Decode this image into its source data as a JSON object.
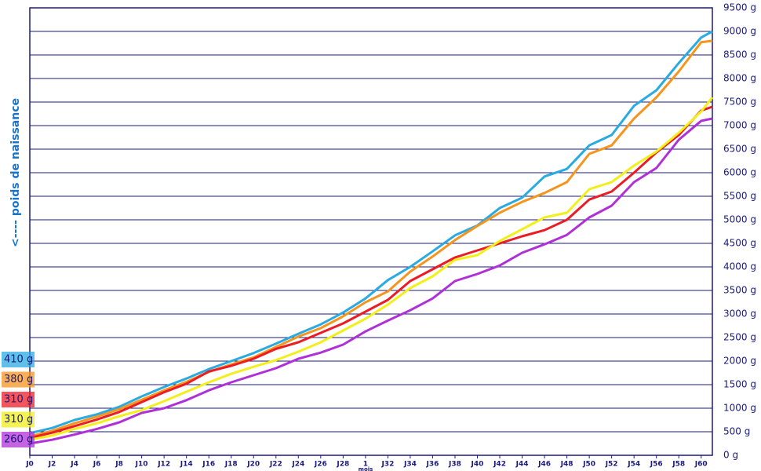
{
  "chart_data": {
    "type": "line",
    "ylabel": "<----  poids de naissance",
    "xlabel": "mois",
    "x": [
      0,
      2,
      4,
      6,
      8,
      10,
      12,
      14,
      16,
      18,
      20,
      22,
      24,
      26,
      28,
      30,
      32,
      34,
      36,
      38,
      40,
      42,
      44,
      46,
      48,
      50,
      52,
      54,
      56,
      58,
      60,
      61
    ],
    "xlim": [
      0,
      61
    ],
    "ylim": [
      0,
      9500
    ],
    "grid": true,
    "xticks": [
      {
        "value": 0,
        "label": "J0"
      },
      {
        "value": 2,
        "label": "J2"
      },
      {
        "value": 4,
        "label": "J4"
      },
      {
        "value": 6,
        "label": "J6"
      },
      {
        "value": 8,
        "label": "J8"
      },
      {
        "value": 10,
        "label": "J10"
      },
      {
        "value": 12,
        "label": "J12"
      },
      {
        "value": 14,
        "label": "J14"
      },
      {
        "value": 16,
        "label": "J16"
      },
      {
        "value": 18,
        "label": "J18"
      },
      {
        "value": 20,
        "label": "J20"
      },
      {
        "value": 22,
        "label": "J22"
      },
      {
        "value": 24,
        "label": "J24"
      },
      {
        "value": 26,
        "label": "J26"
      },
      {
        "value": 28,
        "label": "J28"
      },
      {
        "value": 30,
        "label": "1"
      },
      {
        "value": 32,
        "label": "J32"
      },
      {
        "value": 34,
        "label": "J34"
      },
      {
        "value": 36,
        "label": "J36"
      },
      {
        "value": 38,
        "label": "J38"
      },
      {
        "value": 40,
        "label": "J40"
      },
      {
        "value": 42,
        "label": "J42"
      },
      {
        "value": 44,
        "label": "J44"
      },
      {
        "value": 46,
        "label": "J46"
      },
      {
        "value": 48,
        "label": "J48"
      },
      {
        "value": 50,
        "label": "J50"
      },
      {
        "value": 52,
        "label": "J52"
      },
      {
        "value": 54,
        "label": "J54"
      },
      {
        "value": 56,
        "label": "J56"
      },
      {
        "value": 58,
        "label": "J58"
      },
      {
        "value": 60,
        "label": "J60"
      }
    ],
    "yticks": [
      {
        "value": 0,
        "label": "0 g"
      },
      {
        "value": 500,
        "label": "500 g"
      },
      {
        "value": 1000,
        "label": "1000 g"
      },
      {
        "value": 1500,
        "label": "1500 g"
      },
      {
        "value": 2000,
        "label": "2000 g"
      },
      {
        "value": 2500,
        "label": "2500 g"
      },
      {
        "value": 3000,
        "label": "3000 g"
      },
      {
        "value": 3500,
        "label": "3500 g"
      },
      {
        "value": 4000,
        "label": "4000 g"
      },
      {
        "value": 4500,
        "label": "4500 g"
      },
      {
        "value": 5000,
        "label": "5000 g"
      },
      {
        "value": 5500,
        "label": "5500 g"
      },
      {
        "value": 6000,
        "label": "6000 g"
      },
      {
        "value": 6500,
        "label": "6500 g"
      },
      {
        "value": 7000,
        "label": "7000 g"
      },
      {
        "value": 7500,
        "label": "7500 g"
      },
      {
        "value": 8000,
        "label": "8000 g"
      },
      {
        "value": 8500,
        "label": "8500 g"
      },
      {
        "value": 9000,
        "label": "9000 g"
      },
      {
        "value": 9500,
        "label": "9500 g"
      }
    ],
    "series": [
      {
        "name": "410 g",
        "color": "#29abe2",
        "values": [
          470,
          580,
          750,
          870,
          1030,
          1250,
          1450,
          1630,
          1830,
          2000,
          2170,
          2370,
          2580,
          2780,
          3030,
          3330,
          3720,
          4000,
          4330,
          4670,
          4880,
          5250,
          5470,
          5920,
          6080,
          6580,
          6800,
          7420,
          7750,
          8330,
          8870,
          9000
        ]
      },
      {
        "name": "380 g",
        "color": "#f7941d",
        "values": [
          400,
          520,
          680,
          820,
          980,
          1180,
          1380,
          1560,
          1770,
          1930,
          2080,
          2300,
          2520,
          2700,
          2950,
          3250,
          3480,
          3900,
          4220,
          4570,
          4870,
          5150,
          5380,
          5570,
          5800,
          6400,
          6580,
          7150,
          7600,
          8150,
          8770,
          8800
        ]
      },
      {
        "name": "310 g",
        "color": "#ed1c24",
        "values": [
          370,
          480,
          620,
          760,
          920,
          1130,
          1340,
          1520,
          1780,
          1900,
          2050,
          2260,
          2400,
          2600,
          2800,
          3050,
          3300,
          3700,
          3950,
          4200,
          4350,
          4500,
          4650,
          4780,
          5000,
          5430,
          5600,
          6000,
          6430,
          6800,
          7320,
          7400
        ]
      },
      {
        "name": "310 g",
        "color": "#f2ef1a",
        "values": [
          330,
          420,
          560,
          680,
          830,
          960,
          1150,
          1350,
          1550,
          1730,
          1880,
          2020,
          2200,
          2400,
          2650,
          2900,
          3200,
          3550,
          3800,
          4150,
          4250,
          4550,
          4800,
          5050,
          5150,
          5650,
          5800,
          6150,
          6450,
          6850,
          7300,
          7600
        ]
      },
      {
        "name": "260 g",
        "color": "#b030d8",
        "values": [
          250,
          330,
          440,
          560,
          700,
          900,
          1000,
          1170,
          1380,
          1550,
          1700,
          1850,
          2050,
          2180,
          2350,
          2630,
          2860,
          3080,
          3330,
          3700,
          3850,
          4030,
          4300,
          4480,
          4680,
          5050,
          5300,
          5800,
          6100,
          6700,
          7100,
          7150
        ]
      }
    ]
  }
}
